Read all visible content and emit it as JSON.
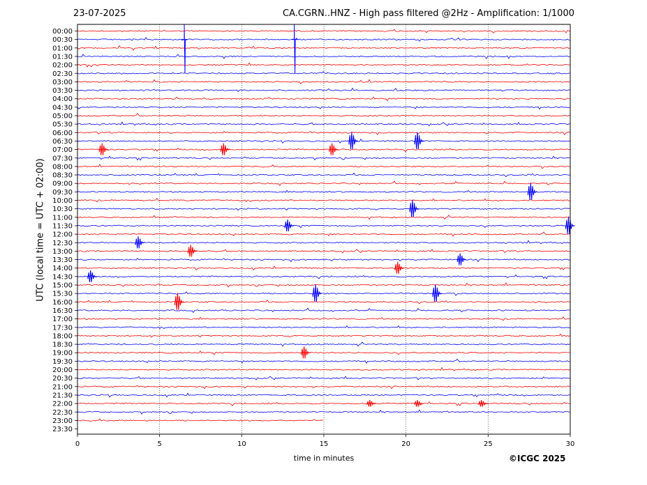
{
  "header": {
    "date": "23-07-2025",
    "title": "CA.CGRN..HNZ - High pass filtered @2Hz - Amplification: 1/1000"
  },
  "footer": {
    "copyright": "©ICGC 2025"
  },
  "chart_data": {
    "type": "line",
    "title": "CA.CGRN..HNZ - High pass filtered @2Hz - Amplification: 1/1000",
    "xlabel": "time in minutes",
    "ylabel": "UTC (local time = UTC + 02:00)",
    "xlim": [
      0,
      30
    ],
    "x_ticks": [
      0,
      5,
      10,
      15,
      20,
      25,
      30
    ],
    "grid": "vertical dotted lines at 5-minute ticks",
    "row_labels": [
      "00:00",
      "00:30",
      "01:00",
      "01:30",
      "02:00",
      "02:30",
      "03:00",
      "03:30",
      "04:00",
      "04:30",
      "05:00",
      "05:30",
      "06:00",
      "06:30",
      "07:00",
      "07:30",
      "08:00",
      "08:30",
      "09:00",
      "09:30",
      "10:00",
      "10:30",
      "11:00",
      "11:30",
      "12:00",
      "12:30",
      "13:00",
      "13:30",
      "14:00",
      "14:30",
      "15:00",
      "15:30",
      "16:00",
      "16:30",
      "17:00",
      "17:30",
      "18:00",
      "18:30",
      "19:00",
      "19:30",
      "20:00",
      "20:30",
      "21:00",
      "21:30",
      "22:00",
      "22:30",
      "23:00",
      "23:30"
    ],
    "series_colors": [
      "#ff0000",
      "#0000ff"
    ],
    "color_rule": "rows alternate red and blue starting with red at 00:00",
    "trace_end": "23:30 row empty; 23:00 row ends at about 15 min",
    "events": [
      {
        "row": "00:30",
        "minute": 6.5,
        "amplitude": "very large",
        "note": "clipped spike spanning rows 00:00-02:30"
      },
      {
        "row": "00:30",
        "minute": 13.2,
        "amplitude": "very large",
        "note": "clipped spike spanning rows 00:00-02:30"
      },
      {
        "row": "06:30",
        "minute": 16.7,
        "amplitude": "large"
      },
      {
        "row": "06:30",
        "minute": 20.7,
        "amplitude": "large"
      },
      {
        "row": "07:00",
        "minute": 1.5,
        "amplitude": "medium"
      },
      {
        "row": "07:00",
        "minute": 8.9,
        "amplitude": "medium"
      },
      {
        "row": "07:00",
        "minute": 15.5,
        "amplitude": "medium"
      },
      {
        "row": "09:30",
        "minute": 27.6,
        "amplitude": "large"
      },
      {
        "row": "10:30",
        "minute": 20.4,
        "amplitude": "large"
      },
      {
        "row": "11:30",
        "minute": 12.8,
        "amplitude": "medium"
      },
      {
        "row": "11:30",
        "minute": 29.9,
        "amplitude": "large"
      },
      {
        "row": "12:30",
        "minute": 3.7,
        "amplitude": "medium"
      },
      {
        "row": "13:00",
        "minute": 6.9,
        "amplitude": "medium"
      },
      {
        "row": "13:30",
        "minute": 23.3,
        "amplitude": "medium"
      },
      {
        "row": "14:00",
        "minute": 19.5,
        "amplitude": "medium"
      },
      {
        "row": "14:30",
        "minute": 0.8,
        "amplitude": "medium"
      },
      {
        "row": "15:30",
        "minute": 14.5,
        "amplitude": "large"
      },
      {
        "row": "15:30",
        "minute": 21.8,
        "amplitude": "large"
      },
      {
        "row": "16:00",
        "minute": 6.1,
        "amplitude": "large"
      },
      {
        "row": "19:00",
        "minute": 13.8,
        "amplitude": "medium"
      },
      {
        "row": "22:00",
        "minute": 17.8,
        "amplitude": "small"
      },
      {
        "row": "22:00",
        "minute": 20.7,
        "amplitude": "small"
      },
      {
        "row": "22:00",
        "minute": 24.6,
        "amplitude": "small"
      }
    ]
  }
}
